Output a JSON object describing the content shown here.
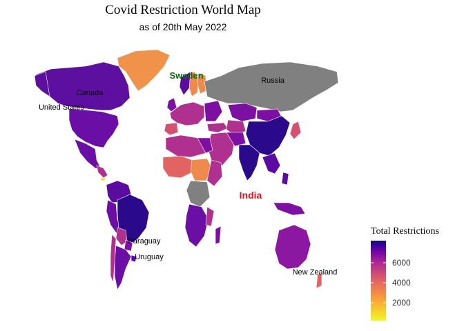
{
  "map": {
    "title": "Covid Restriction World Map",
    "subtitle": "as of 20th May 2022",
    "labels": {
      "sweden": "Sweden",
      "russia": "Russia",
      "canada": "Canada",
      "united_states": "United States",
      "india": "India",
      "paraguay": "Paraguay",
      "uruguay": "Uruguay",
      "new_zealand": "New Zealand"
    },
    "legend": {
      "title": "Total Restrictions",
      "ticks": [
        "6000",
        "4000",
        "2000"
      ],
      "colors": [
        "#0d0887",
        "#6a00a8",
        "#b12a90",
        "#e16462",
        "#fca636",
        "#f0f921"
      ]
    },
    "colors": {
      "no_data": "#808080",
      "very_high": "#2a0a8a",
      "high": "#5b0ca0",
      "mid_high": "#7d10a3",
      "mid": "#b0308f",
      "mid_low": "#d6506f",
      "low": "#ee8a4b",
      "very_low": "#f5e227"
    }
  }
}
